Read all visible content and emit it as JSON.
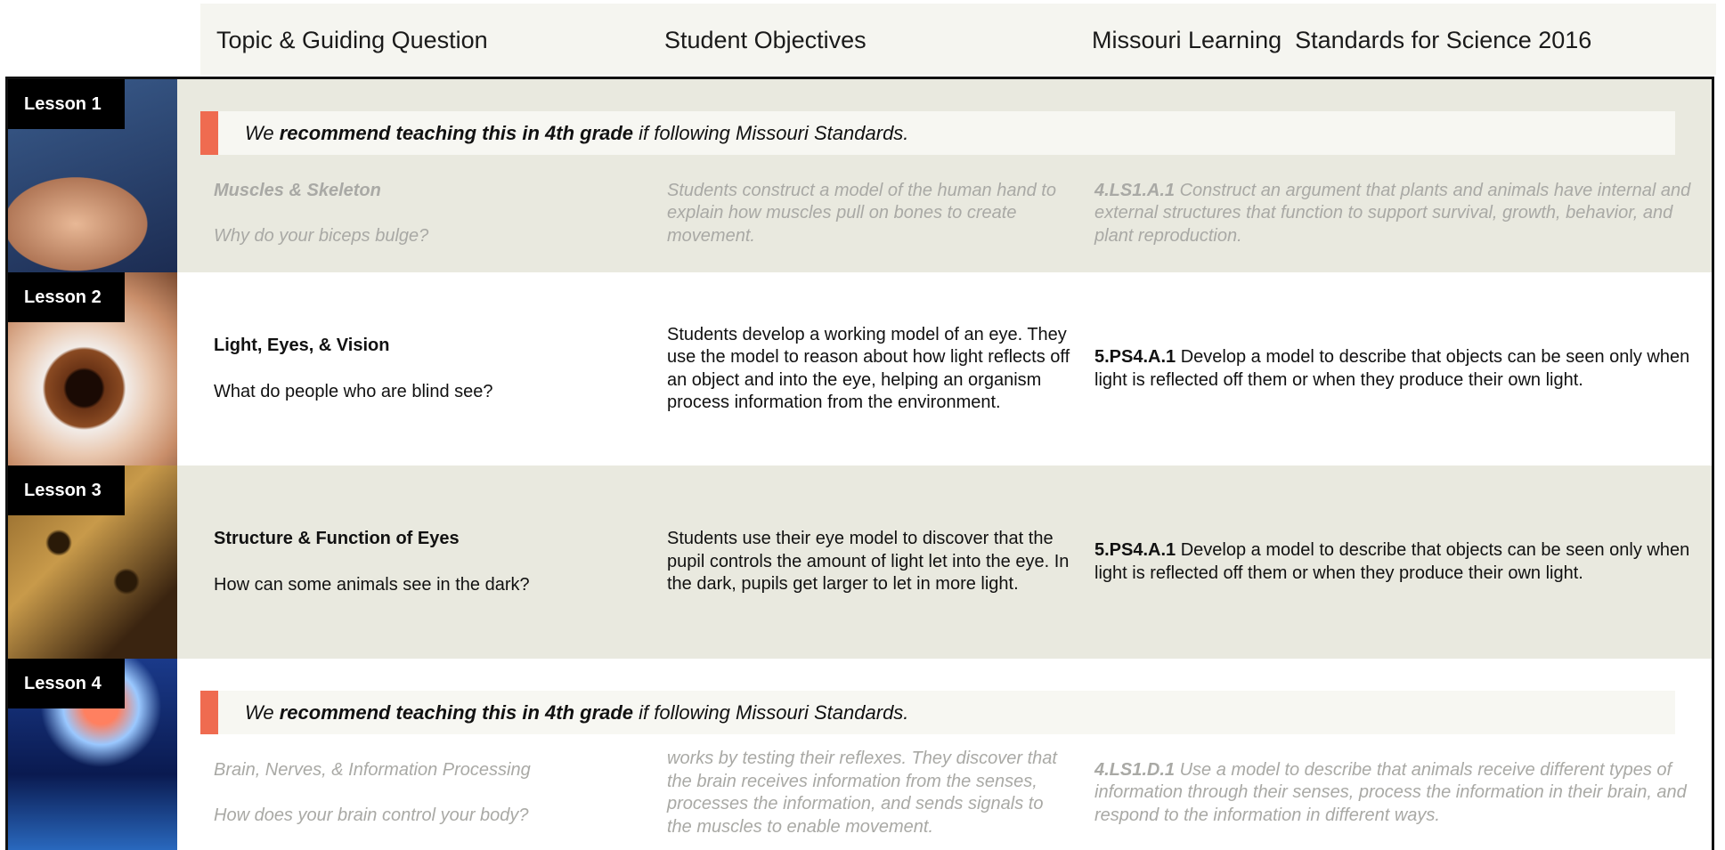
{
  "header": {
    "columns": [
      "Topic & Guiding Question",
      "Student Objectives",
      "Missouri Learning  Standards for Science 2016"
    ]
  },
  "lessons": [
    {
      "label": "Lesson 1",
      "banner": {
        "pre": "We",
        "bold": "recommend teaching this in 4th grade",
        "post": "if following Missouri Standards."
      },
      "topic": "Muscles & Skeleton",
      "question": "Why do your biceps bulge?",
      "objective": "Students construct a model of the human hand to explain how muscles pull on bones to create movement.",
      "standard_code": "4.LS1.A.1",
      "standard_text": "Construct an argument that plants and animals have internal and external structures that function to support survival, growth, behavior, and plant reproduction."
    },
    {
      "label": "Lesson 2",
      "topic": "Light, Eyes, & Vision",
      "question": "What do people who are blind see?",
      "objective": "Students develop a working model of an eye. They use the model to reason about how light reflects off an object and into the eye, helping an organism process information from the environment.",
      "standard_code": "5.PS4.A.1",
      "standard_text": "Develop a model to describe that objects can be seen only when light is reflected off them or when they produce their own light."
    },
    {
      "label": "Lesson 3",
      "topic": "Structure & Function of Eyes",
      "question": "How can some animals see in the dark?",
      "objective": "Students use their eye model to discover that the pupil controls the amount of light let into the eye. In the dark, pupils get larger to let in more light.",
      "standard_code": "5.PS4.A.1",
      "standard_text": "Develop a model to describe that objects can be seen only when light is reflected off them or when they produce their own light."
    },
    {
      "label": "Lesson 4",
      "banner": {
        "pre": "We",
        "bold": "recommend teaching this in 4th grade",
        "post": "if following Missouri Standards."
      },
      "topic": "Brain, Nerves, & Information Processing",
      "question": "How does your brain control your body?",
      "objective": "works by testing their reflexes. They discover that the brain receives information from the senses, processes the information, and sends signals to the muscles to enable movement.",
      "standard_code": "4.LS1.D.1",
      "standard_text": "Use a model to describe that animals receive different types of information through their senses, process the information in their brain, and respond to the information in different ways."
    }
  ]
}
